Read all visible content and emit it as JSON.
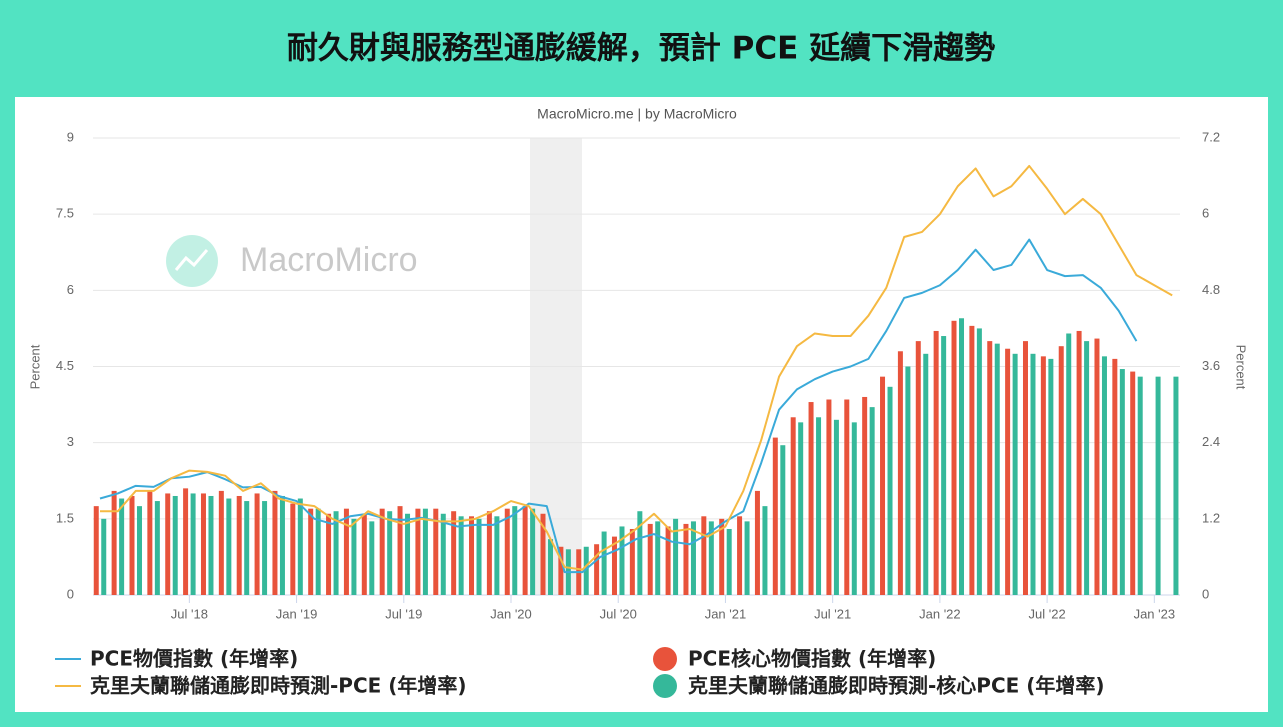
{
  "chart_data": {
    "type": "combo",
    "title": "耐久財與服務型通膨緩解，預計 PCE 延續下滑趨勢",
    "subtitle": "MacroMicro.me | by MacroMicro",
    "watermark": "MacroMicro",
    "y_label": "Percent",
    "y2_label": "Percent",
    "categories": [
      null,
      null,
      null,
      null,
      null,
      "Jul '18",
      null,
      null,
      null,
      null,
      null,
      "Jan '19",
      null,
      null,
      null,
      null,
      null,
      "Jul '19",
      null,
      null,
      null,
      null,
      null,
      "Jan '20",
      null,
      null,
      null,
      null,
      null,
      "Jul '20",
      null,
      null,
      null,
      null,
      null,
      "Jan '21",
      null,
      null,
      null,
      null,
      null,
      "Jul '21",
      null,
      null,
      null,
      null,
      null,
      "Jan '22",
      null,
      null,
      null,
      null,
      null,
      "Jul '22",
      null,
      null,
      null,
      null,
      null,
      "Jan '23",
      null
    ],
    "ylim": [
      0,
      9
    ],
    "yticks": [
      0,
      1.5,
      3,
      4.5,
      6,
      7.5,
      9
    ],
    "y2lim": [
      0,
      7.2
    ],
    "y2ticks": [
      0,
      1.2,
      2.4,
      3.6,
      4.8,
      6,
      7.2
    ],
    "grid": true,
    "series": [
      {
        "name": "PCE物價指數 (年增率)",
        "type": "line",
        "color": "#3aaad9",
        "values": [
          1.9,
          2.0,
          2.15,
          2.13,
          2.3,
          2.33,
          2.42,
          2.28,
          2.12,
          2.13,
          1.95,
          1.85,
          1.5,
          1.4,
          1.55,
          1.6,
          1.5,
          1.48,
          1.52,
          1.45,
          1.35,
          1.38,
          1.38,
          1.55,
          1.8,
          1.75,
          0.45,
          0.45,
          0.75,
          0.9,
          1.1,
          1.2,
          1.05,
          1.0,
          1.2,
          1.45,
          1.65,
          2.6,
          3.65,
          4.05,
          4.25,
          4.4,
          4.5,
          4.65,
          5.2,
          5.85,
          5.95,
          6.1,
          6.4,
          6.8,
          6.4,
          6.5,
          7.0,
          6.4,
          6.28,
          6.3,
          6.05,
          5.6,
          5.0,
          null,
          null
        ]
      },
      {
        "name": "PCE核心物價指數 (年增率)",
        "type": "bar",
        "color": "#e8533b",
        "values": [
          1.75,
          2.05,
          1.95,
          2.05,
          2.0,
          2.1,
          2.0,
          2.05,
          1.95,
          2.0,
          2.05,
          1.8,
          1.7,
          1.6,
          1.7,
          1.6,
          1.7,
          1.75,
          1.7,
          1.7,
          1.65,
          1.55,
          1.65,
          1.7,
          1.75,
          1.6,
          0.95,
          0.9,
          1.0,
          1.15,
          1.3,
          1.4,
          1.35,
          1.4,
          1.55,
          1.5,
          1.55,
          2.05,
          3.1,
          3.5,
          3.8,
          3.85,
          3.85,
          3.9,
          4.3,
          4.8,
          5.0,
          5.2,
          5.4,
          5.3,
          5.0,
          4.85,
          5.0,
          4.7,
          4.9,
          5.2,
          5.05,
          4.65,
          4.4,
          null,
          null
        ]
      },
      {
        "name": "克里夫蘭聯儲通膨即時預測-PCE (年增率)",
        "type": "line",
        "color": "#f5b942",
        "axis": "y2",
        "values": [
          1.32,
          1.32,
          1.64,
          1.64,
          1.84,
          1.96,
          1.94,
          1.88,
          1.64,
          1.76,
          1.52,
          1.44,
          1.4,
          1.2,
          1.08,
          1.32,
          1.2,
          1.12,
          1.2,
          1.16,
          1.16,
          1.2,
          1.32,
          1.48,
          1.4,
          1.0,
          0.44,
          0.4,
          0.68,
          0.84,
          1.04,
          1.28,
          1.0,
          1.04,
          0.92,
          1.08,
          1.64,
          2.44,
          3.44,
          3.92,
          4.12,
          4.08,
          4.08,
          4.4,
          4.84,
          5.64,
          5.72,
          6.0,
          6.44,
          6.72,
          6.28,
          6.44,
          6.76,
          6.4,
          6.0,
          6.24,
          6.0,
          5.52,
          5.04,
          4.88,
          4.72
        ]
      },
      {
        "name": "克里夫蘭聯儲通膨即時預測-核心PCE (年增率)",
        "type": "bar",
        "color": "#35b89a",
        "values": [
          1.5,
          1.9,
          1.75,
          1.85,
          1.95,
          2.0,
          1.95,
          1.9,
          1.85,
          1.85,
          1.95,
          1.9,
          1.7,
          1.65,
          1.5,
          1.45,
          1.65,
          1.6,
          1.7,
          1.6,
          1.55,
          1.5,
          1.55,
          1.75,
          1.7,
          1.1,
          0.9,
          0.95,
          1.25,
          1.35,
          1.65,
          1.45,
          1.5,
          1.45,
          1.45,
          1.3,
          1.45,
          1.75,
          2.95,
          3.4,
          3.5,
          3.45,
          3.4,
          3.7,
          4.1,
          4.5,
          4.75,
          5.1,
          5.45,
          5.25,
          4.95,
          4.75,
          4.75,
          4.65,
          5.15,
          5.0,
          4.7,
          4.45,
          4.3,
          4.3,
          4.3
        ]
      }
    ]
  }
}
